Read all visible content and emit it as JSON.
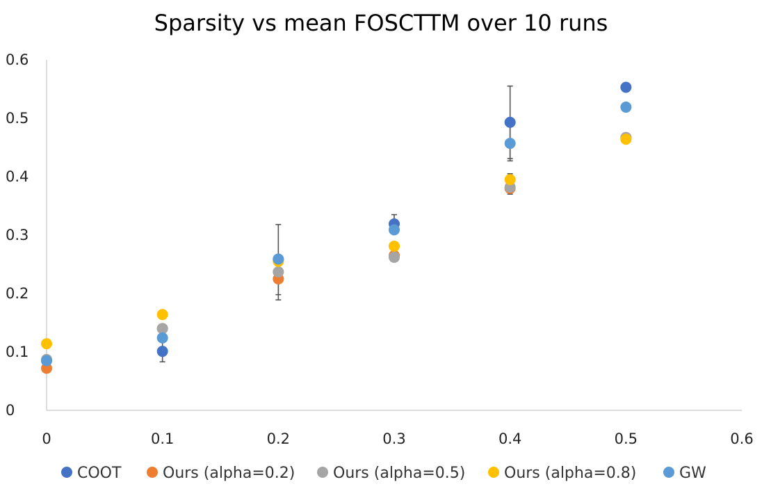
{
  "chart_data": {
    "type": "scatter",
    "title": "Sparsity vs mean FOSCTTM over 10 runs",
    "xlabel": "",
    "ylabel": "",
    "xlim": [
      0,
      0.6
    ],
    "ylim": [
      0,
      0.6
    ],
    "x_ticks": [
      "0",
      "0.1",
      "0.2",
      "0.3",
      "0.4",
      "0.5",
      "0.6"
    ],
    "y_ticks": [
      "0",
      "0.1",
      "0.2",
      "0.3",
      "0.4",
      "0.5",
      "0.6"
    ],
    "grid": false,
    "legend_position": "bottom",
    "x": [
      0,
      0.1,
      0.2,
      0.3,
      0.4,
      0.5
    ],
    "series": [
      {
        "name": "COOT",
        "color": "#4472C4",
        "values": [
          0.085,
          0.101,
          0.258,
          0.319,
          0.493,
          0.553
        ],
        "error": [
          null,
          0.018,
          0.06,
          0.016,
          0.062,
          null
        ]
      },
      {
        "name": "Ours (alpha=0.2)",
        "color": "#ED7D31",
        "values": [
          0.072,
          0.14,
          0.225,
          0.265,
          0.38,
          0.467
        ],
        "error": [
          null,
          null,
          0.036,
          null,
          0.01,
          null
        ]
      },
      {
        "name": "Ours (alpha=0.5)",
        "color": "#A5A5A5",
        "values": [
          0.087,
          0.14,
          0.237,
          0.262,
          0.382,
          0.467
        ],
        "error": [
          null,
          null,
          null,
          null,
          null,
          null
        ]
      },
      {
        "name": "Ours (alpha=0.8)",
        "color": "#FFC000",
        "values": [
          0.114,
          0.164,
          0.255,
          0.281,
          0.395,
          0.464
        ],
        "error": [
          null,
          null,
          null,
          null,
          0.01,
          null
        ]
      },
      {
        "name": "GW",
        "color": "#5B9BD5",
        "values": [
          0.085,
          0.124,
          0.259,
          0.309,
          0.457,
          0.519
        ],
        "error": [
          null,
          null,
          null,
          null,
          0.03,
          null
        ]
      }
    ]
  }
}
